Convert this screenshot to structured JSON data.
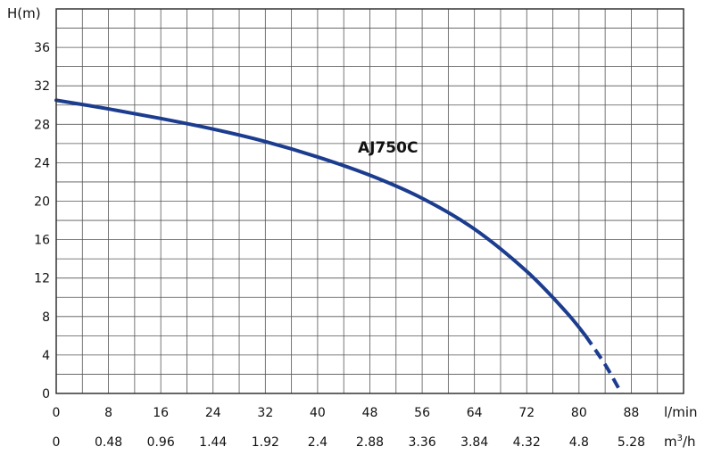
{
  "chart_data": {
    "type": "line",
    "ylabel": "H(m)",
    "xlabel": "l/min",
    "x2label": "m³/h",
    "x2label_base": "m",
    "x2label_sup": "3",
    "x2label_rest": "/h",
    "xlim": [
      0,
      96
    ],
    "ylim": [
      0,
      40
    ],
    "x_ticks": [
      "0",
      "8",
      "16",
      "24",
      "32",
      "40",
      "48",
      "56",
      "64",
      "72",
      "80",
      "88"
    ],
    "x2_ticks": [
      "0",
      "0.48",
      "0.96",
      "1.44",
      "1.92",
      "2.4",
      "2.88",
      "3.36",
      "3.84",
      "4.32",
      "4.8",
      "5.28"
    ],
    "y_ticks": [
      "0",
      "4",
      "8",
      "12",
      "16",
      "20",
      "24",
      "28",
      "32",
      "36"
    ],
    "grid": true,
    "series": [
      {
        "name": "AJ750C",
        "color": "#1c3d8f",
        "x": [
          0,
          8,
          16,
          24,
          32,
          40,
          48,
          56,
          64,
          72,
          78,
          81
        ],
        "y": [
          30.5,
          29.6,
          28.6,
          27.5,
          26.2,
          24.6,
          22.7,
          20.3,
          17.1,
          12.7,
          8.5,
          6.0
        ],
        "dashed_x": [
          81,
          84,
          86.5
        ],
        "dashed_y": [
          6.0,
          3.0,
          0.0
        ]
      }
    ]
  }
}
